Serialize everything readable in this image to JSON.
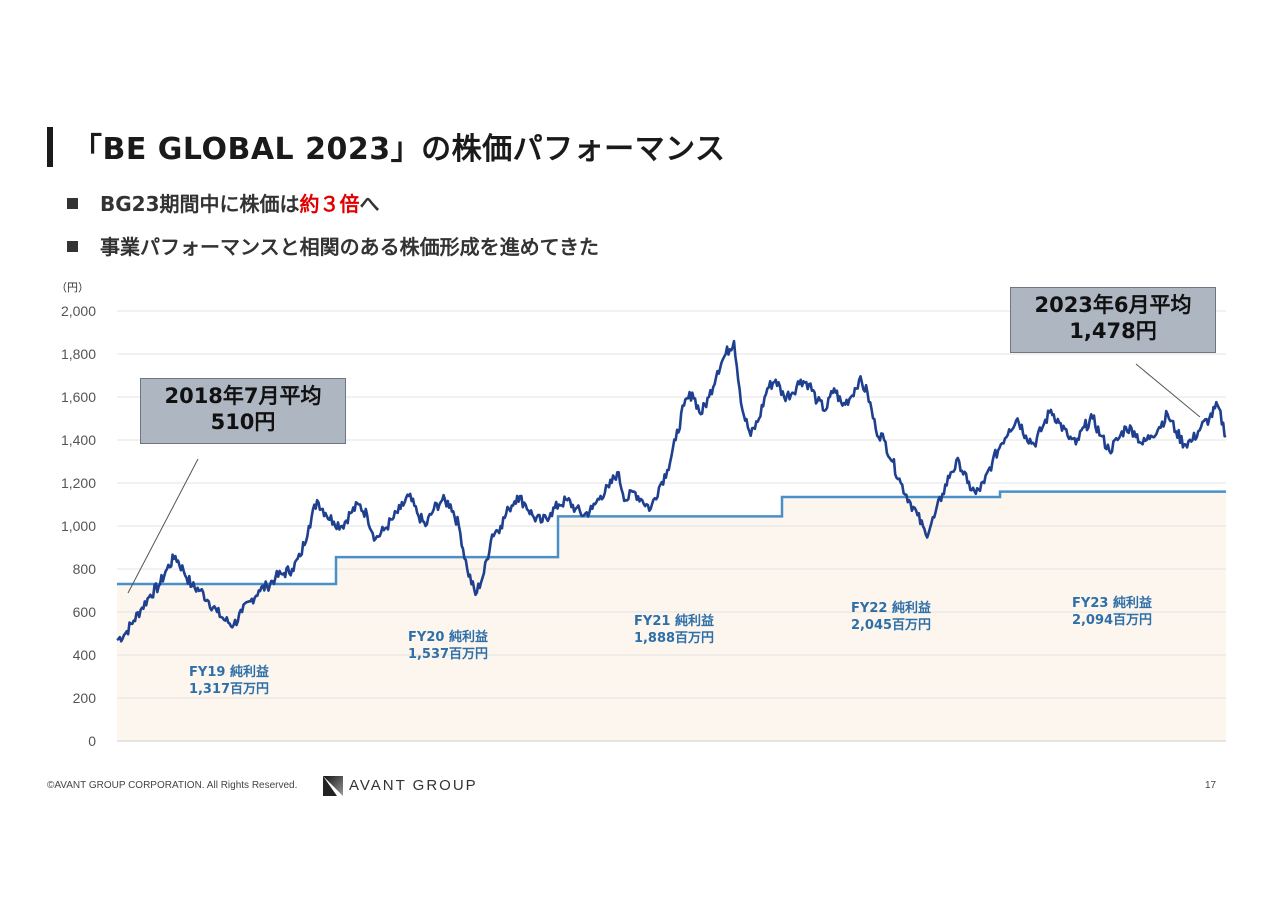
{
  "slide": {
    "title": "「BE GLOBAL 2023」の株価パフォーマンス",
    "bullets": [
      {
        "pre": "BG23期間中に株価は",
        "highlight": "約３倍",
        "post": "へ"
      },
      {
        "pre": "事業パフォーマンスと相関のある株価形成を進めてきた",
        "highlight": "",
        "post": ""
      }
    ],
    "highlight_color": "#e00000",
    "page_number": "17"
  },
  "footer": {
    "copyright": "©AVANT GROUP CORPORATION. All Rights Reserved.",
    "logo_text": "AVANT GROUP",
    "logo_icon": "avant-group-logo-mark"
  },
  "callouts": [
    {
      "line1": "2018年7月平均",
      "line2": "510円"
    },
    {
      "line1": "2023年6月平均",
      "line2": "1,478円"
    }
  ],
  "chart_data": {
    "type": "line",
    "unit_label": "（円）",
    "ylim": [
      0,
      2000
    ],
    "yticks": [
      "0",
      "200",
      "400",
      "600",
      "800",
      "1,000",
      "1,200",
      "1,400",
      "1,600",
      "1,800",
      "2,000"
    ],
    "grid": true,
    "colors": {
      "price": "#1f3f8f",
      "step": "#4a90c8",
      "band": "#fdf6ee",
      "fy_label": "#2e6fa8"
    },
    "fiscal_years": [
      {
        "name": "FY19",
        "label": "FY19 純利益",
        "value": "1,317百万円",
        "step": 730
      },
      {
        "name": "FY20",
        "label": "FY20 純利益",
        "value": "1,537百万円",
        "step": 855
      },
      {
        "name": "FY21",
        "label": "FY21 純利益",
        "value": "1,888百万円",
        "step": 1045
      },
      {
        "name": "FY22",
        "label": "FY22 純利益",
        "value": "2,045百万円",
        "step": 1135
      },
      {
        "name": "FY23",
        "label": "FY23 純利益",
        "value": "2,094百万円",
        "step": 1160
      }
    ],
    "series": [
      {
        "values": [
          470,
          500,
          560,
          620,
          680,
          720,
          800,
          860,
          790,
          720,
          700,
          650,
          600,
          560,
          540,
          600,
          650,
          700,
          720,
          760,
          780,
          800,
          860,
          1000,
          1120,
          1060,
          1020,
          1000,
          1060,
          1100,
          1050,
          940,
          980,
          1030,
          1080,
          1140,
          1060,
          1000,
          1080,
          1120,
          1100,
          1000,
          800,
          680,
          780,
          960,
          1000,
          1080,
          1140,
          1100,
          1040,
          1020,
          1060,
          1100,
          1120,
          1080,
          1050,
          1080,
          1140,
          1180,
          1250,
          1120,
          1160,
          1120,
          1080,
          1180,
          1260,
          1400,
          1560,
          1620,
          1520,
          1600,
          1720,
          1800,
          1860,
          1540,
          1420,
          1500,
          1640,
          1680,
          1600,
          1620,
          1680,
          1660,
          1580,
          1540,
          1640,
          1560,
          1600,
          1680,
          1620,
          1450,
          1400,
          1300,
          1200,
          1120,
          1050,
          960,
          1040,
          1150,
          1250,
          1300,
          1200,
          1150,
          1200,
          1300,
          1380,
          1450,
          1500,
          1420,
          1380,
          1460,
          1540,
          1480,
          1420,
          1380,
          1460,
          1500,
          1420,
          1350,
          1400,
          1460,
          1440,
          1380,
          1420,
          1460,
          1520,
          1440,
          1380,
          1400,
          1460,
          1500,
          1560,
          1420
        ]
      }
    ]
  }
}
